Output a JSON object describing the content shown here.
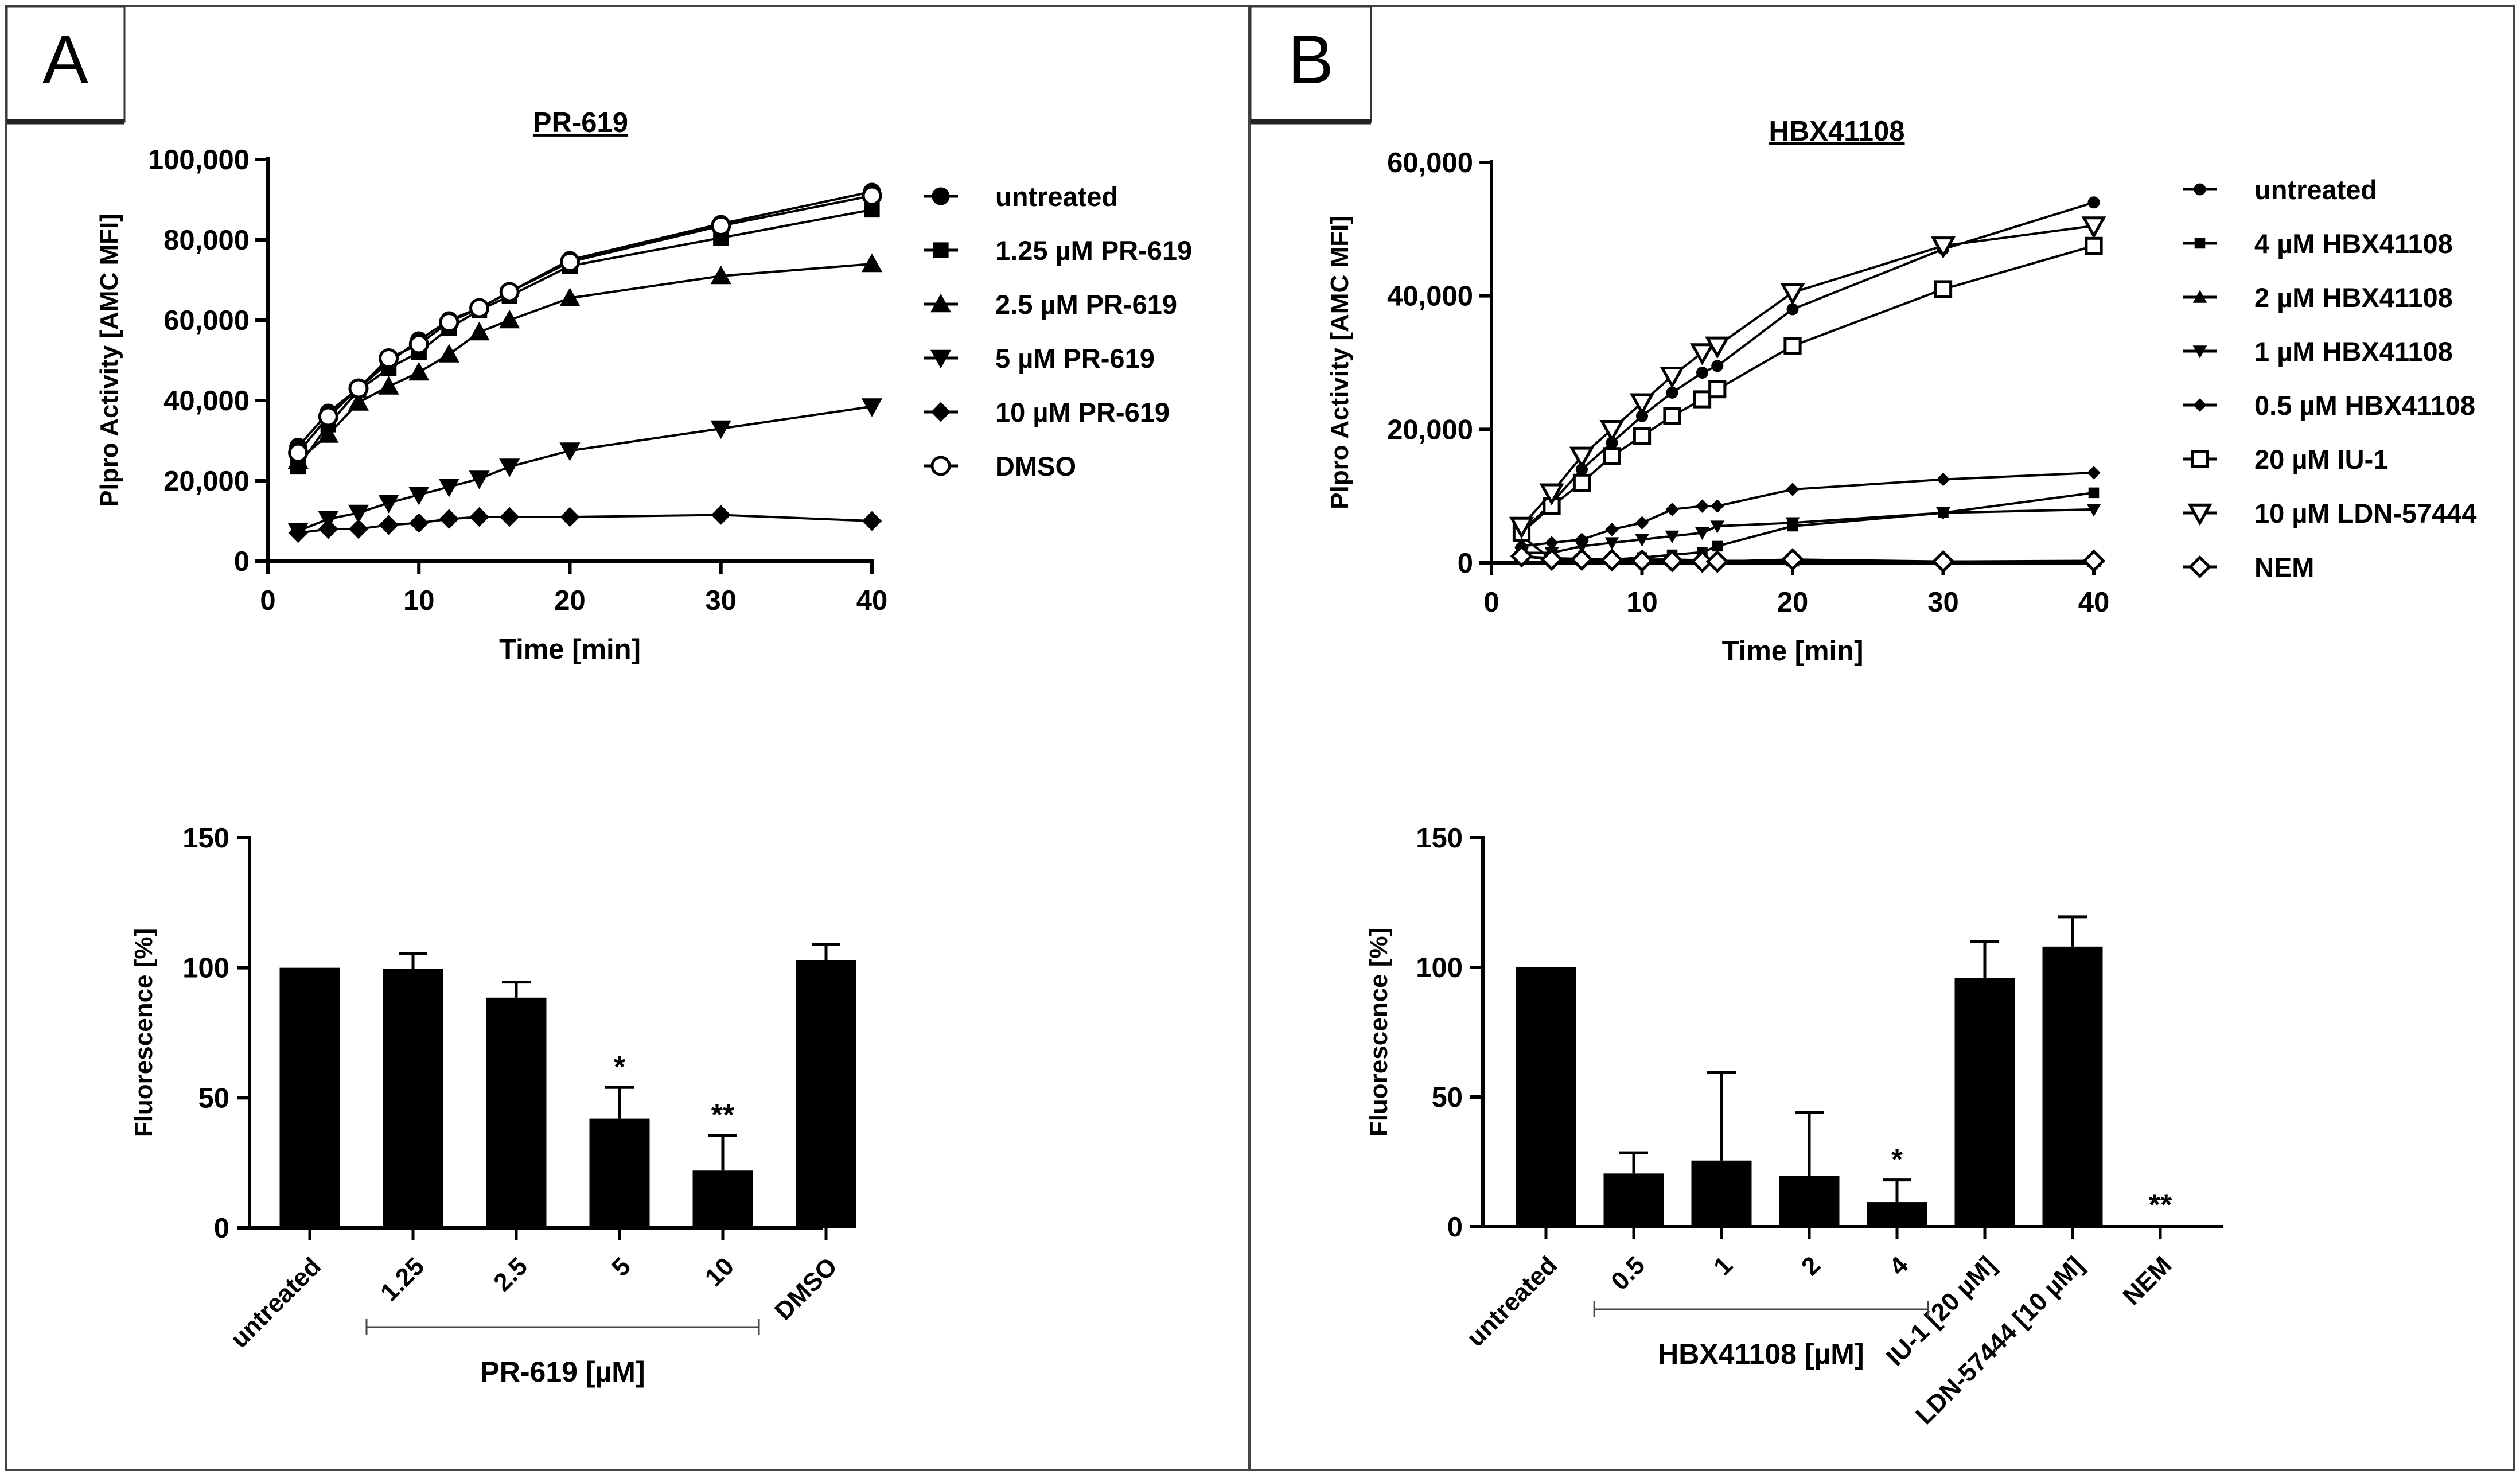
{
  "panels": [
    {
      "label": "A"
    },
    {
      "label": "B"
    }
  ],
  "chart_data": [
    {
      "panel": "A",
      "type": "line",
      "title": "PR-619",
      "xlabel": "Time [min]",
      "ylabel": "Plpro Activity [AMC MFI]",
      "xlim": [
        0,
        40
      ],
      "ylim": [
        0,
        100000
      ],
      "x_ticks": [
        0,
        10,
        20,
        30,
        40
      ],
      "x_tick_labels": [
        "0",
        "10",
        "20",
        "30",
        "40"
      ],
      "y_ticks": [
        0,
        20000,
        40000,
        60000,
        80000,
        100000
      ],
      "y_tick_labels": [
        "0",
        "20,000",
        "40,000",
        "60,000",
        "80,000",
        "100,000"
      ],
      "x": [
        2,
        4,
        6,
        8,
        10,
        12,
        14,
        16,
        20,
        30,
        40
      ],
      "series": [
        {
          "name": "untreated",
          "marker": "circle-filled",
          "values": [
            28500,
            37000,
            43000,
            49500,
            55000,
            60000,
            63000,
            67000,
            75000,
            84000,
            92000
          ]
        },
        {
          "name": "1.25 µM PR-619",
          "marker": "square-filled",
          "values": [
            23500,
            34000,
            42500,
            48000,
            52000,
            58000,
            62500,
            66000,
            73500,
            80500,
            87500
          ]
        },
        {
          "name": "2.5 µM PR-619",
          "marker": "triangle-up-filled",
          "values": [
            25000,
            31500,
            39500,
            43500,
            47000,
            51500,
            57000,
            60000,
            65500,
            71000,
            74000
          ]
        },
        {
          "name": "5 µM PR-619",
          "marker": "triangle-down-filled",
          "values": [
            7500,
            10500,
            12000,
            14500,
            16500,
            18500,
            20500,
            23500,
            27500,
            33000,
            38500
          ]
        },
        {
          "name": "10 µM PR-619",
          "marker": "diamond-filled",
          "values": [
            7000,
            8000,
            8000,
            9000,
            9500,
            10500,
            11000,
            11000,
            11000,
            11500,
            10000
          ]
        },
        {
          "name": "DMSO",
          "marker": "circle-open",
          "values": [
            27000,
            36000,
            43000,
            50500,
            54000,
            59500,
            63000,
            67000,
            74500,
            83500,
            91000
          ]
        }
      ]
    },
    {
      "panel": "A",
      "type": "bar",
      "ylabel": "Fluorescence [%]",
      "ylim": [
        0,
        150
      ],
      "y_ticks": [
        0,
        50,
        100,
        150
      ],
      "y_tick_labels": [
        "0",
        "50",
        "100",
        "150"
      ],
      "categories": [
        "untreated",
        "1.25",
        "2.5",
        "5",
        "10",
        "DMSO"
      ],
      "values": [
        100,
        99.5,
        88.5,
        42,
        22,
        103
      ],
      "errors": [
        0,
        6,
        6,
        12,
        13.5,
        6
      ],
      "significance": [
        "",
        "",
        "",
        "*",
        "**",
        ""
      ],
      "group_label": "PR-619 [µM]",
      "group_range": [
        "1.25",
        "10"
      ]
    },
    {
      "panel": "B",
      "type": "line",
      "title": "HBX41108",
      "xlabel": "Time [min]",
      "ylabel": "Plpro Activity [AMC MFI]",
      "xlim": [
        0,
        40
      ],
      "ylim": [
        0,
        60000
      ],
      "x_ticks": [
        0,
        10,
        20,
        30,
        40
      ],
      "x_tick_labels": [
        "0",
        "10",
        "20",
        "30",
        "40"
      ],
      "y_ticks": [
        0,
        20000,
        40000,
        60000
      ],
      "y_tick_labels": [
        "0",
        "20,000",
        "40,000",
        "60,000"
      ],
      "x": [
        2,
        4,
        6,
        8,
        10,
        12,
        14,
        15,
        20,
        30,
        40
      ],
      "series": [
        {
          "name": "untreated",
          "marker": "circle-filled-small",
          "values": [
            4500,
            9000,
            14000,
            18000,
            22000,
            25500,
            28500,
            29500,
            38000,
            47000,
            54000
          ]
        },
        {
          "name": "4 µM HBX41108",
          "marker": "square-filled-small",
          "values": [
            4000,
            500,
            500,
            500,
            800,
            1200,
            1600,
            2500,
            5500,
            7500,
            10500
          ]
        },
        {
          "name": "2 µM HBX41108",
          "marker": "triangle-up-filled-small",
          "values": [
            1000,
            700,
            600,
            600,
            500,
            500,
            400,
            300,
            300,
            200,
            200
          ]
        },
        {
          "name": "1 µM HBX41108",
          "marker": "triangle-down-filled-small",
          "values": [
            1500,
            1500,
            2500,
            3000,
            3500,
            4000,
            4500,
            5500,
            6000,
            7500,
            8000
          ]
        },
        {
          "name": "0.5 µM HBX41108",
          "marker": "diamond-filled-small",
          "values": [
            2500,
            3000,
            3500,
            5000,
            6000,
            8000,
            8500,
            8500,
            11000,
            12500,
            13500
          ]
        },
        {
          "name": "20 µM IU-1",
          "marker": "square-open",
          "values": [
            4500,
            8500,
            12000,
            16000,
            19000,
            22000,
            24500,
            26000,
            32500,
            41000,
            47500
          ]
        },
        {
          "name": "10 µM LDN-57444",
          "marker": "triangle-down-open",
          "values": [
            5500,
            10500,
            16000,
            20000,
            24000,
            28000,
            31500,
            32500,
            40500,
            47500,
            50500
          ]
        },
        {
          "name": "NEM",
          "marker": "diamond-open",
          "values": [
            1000,
            500,
            500,
            400,
            300,
            300,
            200,
            200,
            500,
            200,
            300
          ]
        }
      ]
    },
    {
      "panel": "B",
      "type": "bar",
      "ylabel": "Fluorescence [%]",
      "ylim": [
        0,
        150
      ],
      "y_ticks": [
        0,
        50,
        100,
        150
      ],
      "y_tick_labels": [
        "0",
        "50",
        "100",
        "150"
      ],
      "categories": [
        "untreated",
        "0.5",
        "1",
        "2",
        "4",
        "IU-1 [20 µM]",
        "LDN-57444 [10 µM]",
        "NEM"
      ],
      "values": [
        100,
        20.5,
        25.5,
        19.5,
        9.5,
        96,
        108,
        0.5
      ],
      "errors": [
        0,
        8,
        34,
        24.5,
        8.5,
        14,
        11.5,
        0
      ],
      "significance": [
        "",
        "",
        "",
        "",
        "*",
        "",
        "",
        "**"
      ],
      "group_label": "HBX41108 [µM]",
      "group_range": [
        "0.5",
        "4"
      ]
    }
  ]
}
